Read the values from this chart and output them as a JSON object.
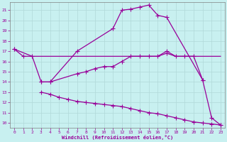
{
  "xlabel": "Windchill (Refroidissement éolien,°C)",
  "bg_color": "#c8f0f0",
  "line_color": "#990099",
  "grid_color": "#b0d8d8",
  "xlim": [
    -0.5,
    23.5
  ],
  "ylim": [
    9.5,
    21.8
  ],
  "xticks": [
    0,
    1,
    2,
    3,
    4,
    5,
    6,
    7,
    8,
    9,
    10,
    11,
    12,
    13,
    14,
    15,
    16,
    17,
    18,
    19,
    20,
    21,
    22,
    23
  ],
  "yticks": [
    10,
    11,
    12,
    13,
    14,
    15,
    16,
    17,
    18,
    19,
    20,
    21
  ],
  "line1_x": [
    0,
    1,
    2,
    3,
    4,
    5,
    6,
    7,
    8,
    9,
    10,
    11,
    12,
    13,
    14,
    15,
    16,
    17,
    18,
    19,
    20,
    21,
    22,
    23
  ],
  "line1_y": [
    17.2,
    16.5,
    16.5,
    16.5,
    16.5,
    16.5,
    16.5,
    16.5,
    16.5,
    16.5,
    16.5,
    16.5,
    16.5,
    16.5,
    16.5,
    16.5,
    16.5,
    17.0,
    16.5,
    16.5,
    16.5,
    16.5,
    16.5,
    16.5
  ],
  "line1_mx": [
    0,
    1,
    17
  ],
  "line1_my": [
    17.2,
    16.5,
    17.0
  ],
  "line2_x": [
    0,
    2,
    3,
    4,
    7,
    11,
    12,
    13,
    14,
    15,
    16,
    17,
    21,
    22,
    23
  ],
  "line2_y": [
    17.2,
    16.5,
    14.0,
    14.0,
    17.0,
    19.2,
    21.0,
    21.1,
    21.3,
    21.5,
    20.5,
    20.3,
    14.2,
    10.5,
    9.8
  ],
  "line3_x": [
    3,
    4,
    7,
    8,
    9,
    10,
    11,
    12,
    13,
    14,
    15,
    16,
    17,
    18,
    19,
    20,
    21
  ],
  "line3_y": [
    14.0,
    14.0,
    14.8,
    15.0,
    15.3,
    15.5,
    15.5,
    16.0,
    16.5,
    16.5,
    16.5,
    16.5,
    16.8,
    16.5,
    16.5,
    16.5,
    14.2
  ],
  "line4_x": [
    3,
    4,
    5,
    6,
    7,
    8,
    9,
    10,
    11,
    12,
    13,
    14,
    15,
    16,
    17,
    18,
    19,
    20,
    21,
    22,
    23
  ],
  "line4_y": [
    13.0,
    12.8,
    12.5,
    12.3,
    12.1,
    12.0,
    11.9,
    11.8,
    11.7,
    11.6,
    11.4,
    11.2,
    11.0,
    10.9,
    10.7,
    10.5,
    10.3,
    10.1,
    10.0,
    9.9,
    9.8
  ]
}
